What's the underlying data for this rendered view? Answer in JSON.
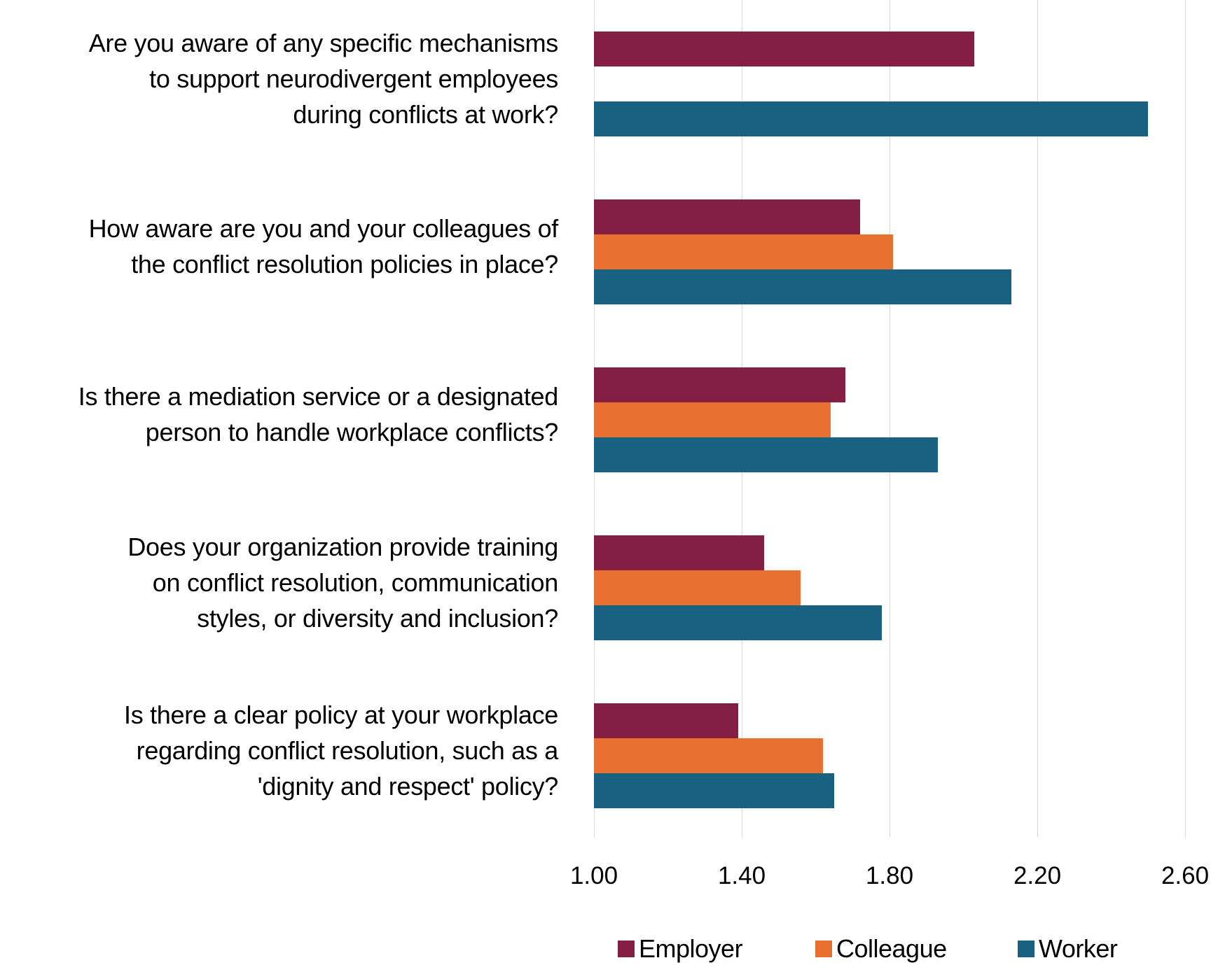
{
  "chart_data": {
    "type": "bar",
    "orientation": "horizontal",
    "title": "",
    "xlabel": "",
    "ylabel": "",
    "xlim": [
      1.0,
      2.6
    ],
    "x_ticks": [
      "1.00",
      "1.40",
      "1.80",
      "2.20",
      "2.60"
    ],
    "grid": true,
    "legend_position": "bottom",
    "categories": [
      "Are you aware of any specific mechanisms to support neurodivergent employees during conflicts at work?",
      "How aware are you and your colleagues of the conflict resolution policies in place?",
      "Is there a mediation service or a designated person to handle workplace conflicts?",
      "Does your organization provide training on conflict resolution, communication styles, or diversity and inclusion?",
      "Is there a clear policy at your workplace regarding conflict resolution, such as a 'dignity and respect' policy?"
    ],
    "series": [
      {
        "name": "Employer",
        "color": "#841E42",
        "values": [
          2.03,
          1.72,
          1.68,
          1.46,
          1.39
        ]
      },
      {
        "name": "Colleague",
        "color": "#E87132",
        "values": [
          null,
          1.81,
          1.64,
          1.56,
          1.62
        ]
      },
      {
        "name": "Worker",
        "color": "#196180",
        "values": [
          2.5,
          2.13,
          1.93,
          1.78,
          1.65
        ]
      }
    ]
  },
  "labels": [
    {
      "lines": [
        "Are you aware of any specific mechanisms",
        "to support neurodivergent employees",
        "during conflicts at work?"
      ]
    },
    {
      "lines": [
        "How aware are you and your colleagues of",
        "the conflict resolution policies in place?"
      ]
    },
    {
      "lines": [
        "Is there a mediation service or a designated",
        "person to handle workplace conflicts?"
      ]
    },
    {
      "lines": [
        "Does your organization provide training",
        "on conflict resolution, communication",
        "styles, or diversity and inclusion?"
      ]
    },
    {
      "lines": [
        "Is there a clear policy at your workplace",
        "regarding conflict resolution, such as a",
        "'dignity and respect' policy?"
      ]
    }
  ],
  "legend": [
    {
      "label": "Employer",
      "color": "#841E42"
    },
    {
      "label": "Colleague",
      "color": "#E87132"
    },
    {
      "label": "Worker",
      "color": "#196180"
    }
  ],
  "colors": {
    "gridline": "#D9D9D9",
    "text": "#000000"
  }
}
